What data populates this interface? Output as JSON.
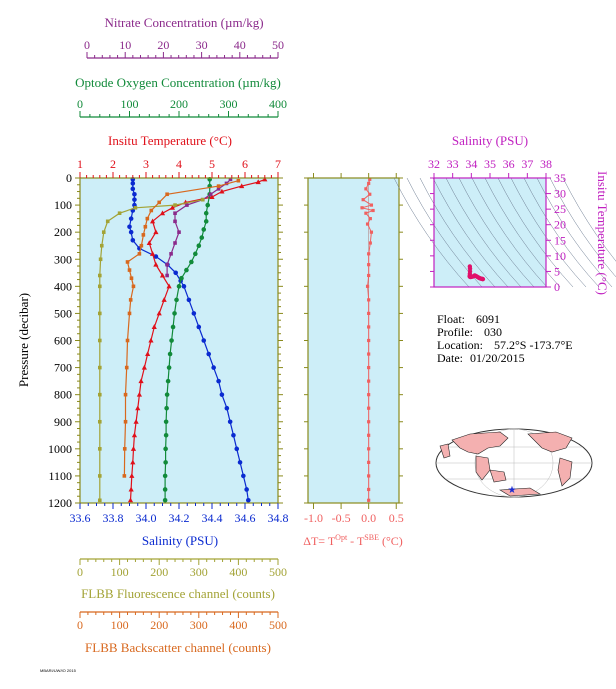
{
  "colors": {
    "nitrate": "#8b2a8b",
    "oxygen": "#118a3a",
    "temperature": "#e0101a",
    "salinity": "#0a2ad0",
    "fluorescence": "#a3a336",
    "backscatter": "#d8681e",
    "dt": "#f06060",
    "ts_axis": "#c020c0",
    "panel_bg": "#cdeef8",
    "frame": "#8a8a1c"
  },
  "main_panel": {
    "pressure_label": "Pressure (decibar)",
    "pressure_ticks": [
      "0",
      "100",
      "200",
      "300",
      "400",
      "500",
      "600",
      "700",
      "800",
      "900",
      "1000",
      "1100",
      "1200"
    ],
    "axes": {
      "nitrate": {
        "label": "Nitrate Concentration (µm/kg)",
        "ticks": [
          "0",
          "10",
          "20",
          "30",
          "40",
          "50"
        ]
      },
      "oxygen": {
        "label": "Optode Oxygen Concentration (µm/kg)",
        "ticks": [
          "0",
          "100",
          "200",
          "300",
          "400"
        ]
      },
      "temperature": {
        "label": "Insitu Temperature (°C)",
        "ticks": [
          "1",
          "2",
          "3",
          "4",
          "5",
          "6",
          "7"
        ]
      },
      "salinity": {
        "label": "Salinity (PSU)",
        "ticks": [
          "33.6",
          "33.8",
          "34.0",
          "34.2",
          "34.4",
          "34.6",
          "34.8"
        ]
      },
      "fluorescence": {
        "label": "FLBB Fluorescence channel (counts)",
        "ticks": [
          "0",
          "100",
          "200",
          "300",
          "400",
          "500"
        ]
      },
      "backscatter": {
        "label": "FLBB Backscatter channel (counts)",
        "ticks": [
          "0",
          "100",
          "200",
          "300",
          "400",
          "500"
        ]
      }
    }
  },
  "dt_panel": {
    "label_prefix": "ΔT= T",
    "label_sup1": "Opt",
    "label_mid": " - T",
    "label_sup2": "SBE",
    "label_suffix": " (°C)",
    "ticks": [
      "-1.0",
      "-0.5",
      "0.0",
      "0.5"
    ]
  },
  "ts_panel": {
    "title": "Salinity (PSU)",
    "x_ticks": [
      "32",
      "33",
      "34",
      "35",
      "36",
      "37",
      "38"
    ],
    "y_label": "Insitu Temperature (°C)",
    "y_ticks": [
      "0",
      "5",
      "10",
      "15",
      "20",
      "25",
      "30",
      "35"
    ]
  },
  "float_info": {
    "float_label": "Float:",
    "float_value": "6091",
    "profile_label": "Profile:",
    "profile_value": "030",
    "location_label": "Location:",
    "location_value": "57.2°S  -173.7°E",
    "date_label": "Date:",
    "date_value": "01/20/2015"
  },
  "footer_text": "MBARI/UW/IO 2015",
  "chart_data": [
    {
      "type": "line",
      "title": "",
      "y_axis": "Pressure (decibar)",
      "ylim": [
        1200,
        0
      ],
      "series": [
        {
          "name": "Salinity (PSU)",
          "axis": "salinity",
          "xlim": [
            33.6,
            34.8
          ],
          "pressure": [
            5,
            20,
            40,
            60,
            80,
            100,
            120,
            150,
            180,
            200,
            230,
            260,
            290,
            320,
            350,
            380,
            400,
            450,
            500,
            550,
            600,
            650,
            700,
            750,
            800,
            850,
            900,
            950,
            1000,
            1050,
            1100,
            1150,
            1190
          ],
          "values": [
            33.92,
            33.92,
            33.92,
            33.93,
            33.93,
            33.93,
            33.92,
            33.91,
            33.9,
            33.91,
            33.92,
            33.96,
            34.06,
            34.13,
            34.18,
            34.21,
            34.23,
            34.26,
            34.29,
            34.32,
            34.35,
            34.38,
            34.41,
            34.44,
            34.46,
            34.49,
            34.51,
            34.53,
            34.55,
            34.57,
            34.59,
            34.61,
            34.62
          ]
        },
        {
          "name": "Insitu Temperature (°C)",
          "axis": "temperature",
          "xlim": [
            1,
            7
          ],
          "pressure": [
            5,
            15,
            30,
            50,
            70,
            90,
            110,
            130,
            160,
            200,
            240,
            280,
            320,
            360,
            400,
            450,
            500,
            550,
            600,
            650,
            700,
            750,
            800,
            850,
            900,
            950,
            1000,
            1050,
            1100,
            1150,
            1190
          ],
          "values": [
            6.6,
            6.4,
            5.9,
            5.3,
            5.0,
            4.2,
            3.8,
            3.5,
            3.2,
            3.3,
            3.1,
            3.2,
            3.3,
            3.5,
            3.7,
            3.55,
            3.4,
            3.25,
            3.15,
            3.05,
            2.95,
            2.85,
            2.8,
            2.75,
            2.7,
            2.65,
            2.62,
            2.6,
            2.57,
            2.55,
            2.53
          ]
        },
        {
          "name": "Optode Oxygen Concentration (µm/kg)",
          "axis": "oxygen",
          "xlim": [
            0,
            400
          ],
          "pressure": [
            5,
            30,
            60,
            100,
            130,
            160,
            190,
            220,
            250,
            280,
            310,
            340,
            370,
            400,
            450,
            500,
            550,
            600,
            650,
            700,
            750,
            800,
            850,
            900,
            950,
            1000,
            1050,
            1100,
            1150,
            1190
          ],
          "values": [
            262,
            262,
            262,
            258,
            255,
            255,
            250,
            246,
            240,
            233,
            225,
            215,
            205,
            200,
            195,
            191,
            188,
            185,
            182,
            180,
            178,
            176,
            175,
            174,
            174,
            173,
            173,
            172,
            172,
            172
          ]
        },
        {
          "name": "Nitrate Concentration (µm/kg)",
          "axis": "nitrate",
          "xlim": [
            0,
            50
          ],
          "pressure": [
            5,
            20,
            40,
            60,
            80,
            100,
            130,
            160,
            200,
            240,
            280,
            320,
            360
          ],
          "values": [
            38,
            37,
            35,
            33,
            31,
            27,
            24,
            24,
            25,
            24,
            23,
            22,
            22
          ]
        },
        {
          "name": "FLBB Fluorescence channel (counts)",
          "axis": "fluorescence",
          "xlim": [
            0,
            500
          ],
          "pressure": [
            80,
            100,
            110,
            130,
            160,
            200,
            250,
            300,
            360,
            400,
            500,
            600,
            700,
            800,
            900,
            1000,
            1100,
            1190
          ],
          "values": [
            310,
            240,
            140,
            100,
            70,
            60,
            55,
            52,
            50,
            50,
            50,
            50,
            50,
            50,
            50,
            50,
            50,
            50
          ]
        },
        {
          "name": "FLBB Backscatter channel (counts)",
          "axis": "backscatter",
          "xlim": [
            0,
            500
          ],
          "pressure": [
            10,
            30,
            60,
            90,
            120,
            150,
            180,
            210,
            250,
            280,
            310,
            340,
            370,
            400,
            450,
            500,
            600,
            700,
            800,
            900,
            1000,
            1100
          ],
          "values": [
            400,
            350,
            220,
            200,
            180,
            170,
            165,
            160,
            155,
            150,
            120,
            125,
            130,
            135,
            128,
            125,
            120,
            118,
            115,
            115,
            113,
            112
          ]
        }
      ]
    },
    {
      "type": "scatter",
      "title": "",
      "x_axis": "ΔT",
      "xlim": [
        -1.1,
        0.55
      ],
      "ylim": [
        1200,
        0
      ],
      "series": [
        {
          "name": "ΔT",
          "pressure": [
            5,
            20,
            40,
            60,
            80,
            100,
            110,
            120,
            130,
            150,
            170,
            200,
            240,
            280,
            320,
            360,
            400,
            450,
            500,
            550,
            600,
            650,
            700,
            750,
            800,
            850,
            900,
            950,
            1000,
            1050,
            1100,
            1150,
            1190
          ],
          "values": [
            0.02,
            0.0,
            -0.05,
            0.02,
            -0.1,
            0.05,
            -0.12,
            0.08,
            -0.05,
            0.03,
            -0.02,
            0.05,
            0.03,
            0.0,
            0.0,
            0.0,
            -0.02,
            0.0,
            0.0,
            0.0,
            0.0,
            0.0,
            0.0,
            0.0,
            0.0,
            0.0,
            0.0,
            0.0,
            0.0,
            0.0,
            0.0,
            0.0,
            0.0
          ]
        }
      ]
    },
    {
      "type": "scatter",
      "title": "",
      "xlabel": "Salinity (PSU)",
      "ylabel": "Insitu Temperature (°C)",
      "xlim": [
        32,
        38
      ],
      "ylim": [
        0,
        35
      ],
      "series": [
        {
          "name": "T-S",
          "x": [
            33.92,
            33.93,
            33.93,
            33.92,
            33.91,
            33.92,
            33.96,
            34.06,
            34.13,
            34.18,
            34.23,
            34.29,
            34.35,
            34.41,
            34.46,
            34.51,
            34.55,
            34.59,
            34.62
          ],
          "y": [
            6.6,
            5.9,
            5.0,
            4.2,
            3.5,
            3.3,
            3.2,
            3.3,
            3.5,
            3.7,
            3.55,
            3.4,
            3.15,
            2.95,
            2.8,
            2.7,
            2.62,
            2.57,
            2.53
          ]
        }
      ]
    }
  ]
}
